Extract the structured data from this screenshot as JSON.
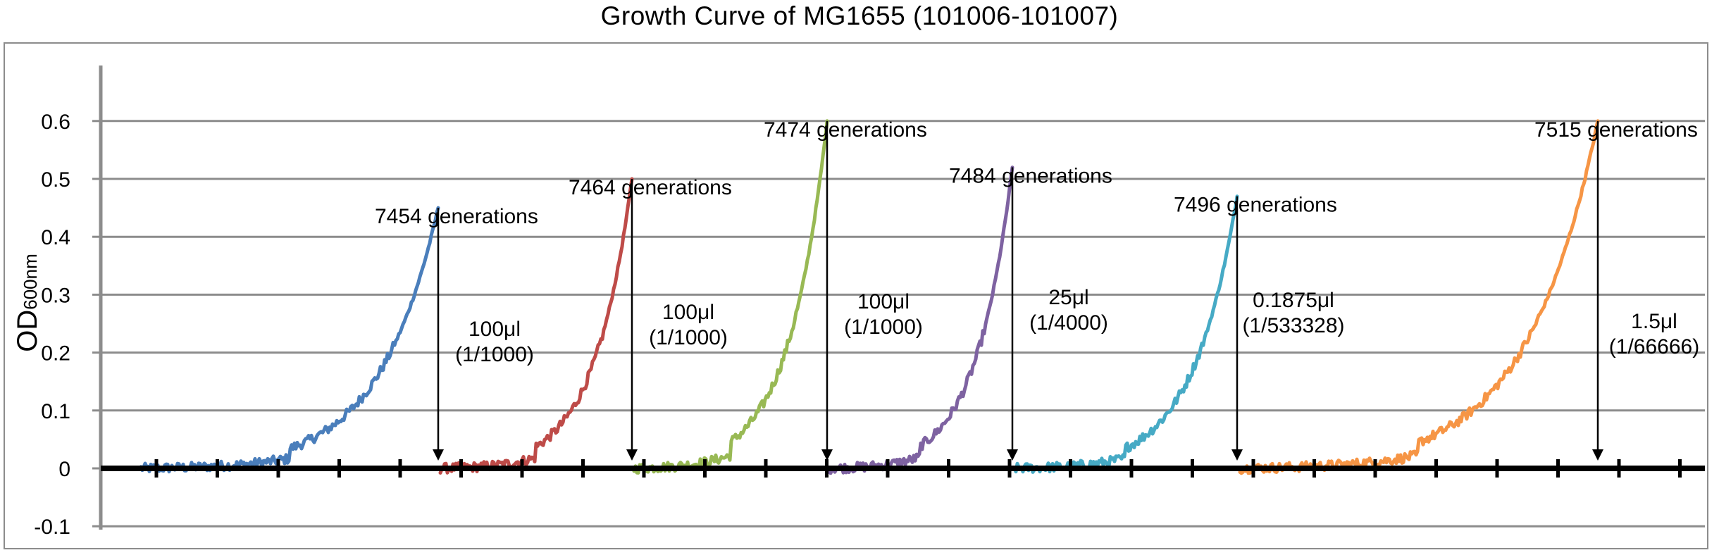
{
  "chart_data": {
    "type": "line",
    "title": "Growth Curve of MG1655 (101006-101007)",
    "ylabel_main": "OD",
    "ylabel_sub": "600nm",
    "ylim": [
      -0.1,
      0.6
    ],
    "yticks": [
      {
        "value": 0.6,
        "label": "0.6"
      },
      {
        "value": 0.5,
        "label": "0.5"
      },
      {
        "value": 0.4,
        "label": "0.4"
      },
      {
        "value": 0.3,
        "label": "0.3"
      },
      {
        "value": 0.2,
        "label": "0.2"
      },
      {
        "value": 0.1,
        "label": "0.1"
      },
      {
        "value": 0,
        "label": "0"
      },
      {
        "value": -0.1,
        "label": "-0.1"
      }
    ],
    "grid": true,
    "legend": "none",
    "series": [
      {
        "color": "#4a7ebb",
        "peak_od": 0.45,
        "generation_label": "7454 generations",
        "transfer_volume": "100μl",
        "transfer_ratio": "(1/1000)"
      },
      {
        "color": "#be4b48",
        "peak_od": 0.5,
        "generation_label": "7464 generations",
        "transfer_volume": "100μl",
        "transfer_ratio": "(1/1000)"
      },
      {
        "color": "#98b954",
        "peak_od": 0.6,
        "generation_label": "7474 generations",
        "transfer_volume": "100μl",
        "transfer_ratio": "(1/1000)"
      },
      {
        "color": "#7e62a1",
        "peak_od": 0.52,
        "generation_label": "7484 generations",
        "transfer_volume": "25μl",
        "transfer_ratio": "(1/4000)"
      },
      {
        "color": "#46aac5",
        "peak_od": 0.47,
        "generation_label": "7496 generations",
        "transfer_volume": "0.1875μl",
        "transfer_ratio": "(1/533328)"
      },
      {
        "color": "#f69545",
        "peak_od": 0.6,
        "generation_label": "7515 generations",
        "transfer_volume": "1.5μl",
        "transfer_ratio": "(1/66666)"
      }
    ]
  }
}
